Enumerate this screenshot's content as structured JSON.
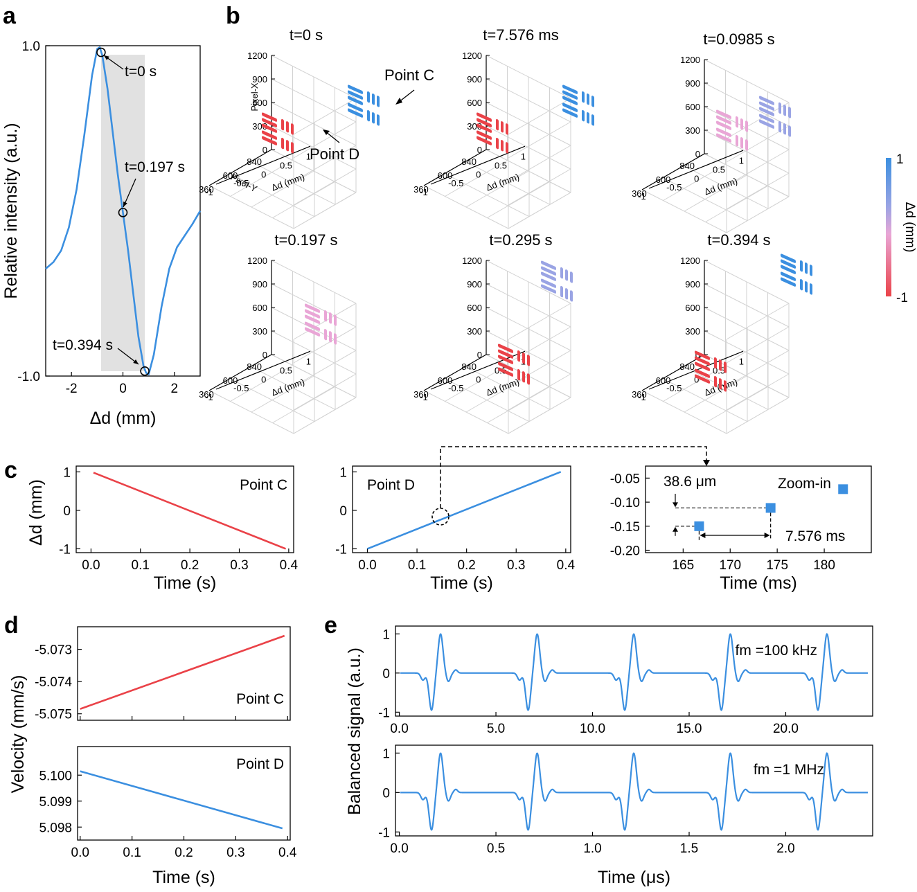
{
  "panel_labels": [
    "a",
    "b",
    "c",
    "d",
    "e"
  ],
  "colors": {
    "blue": "#3b8fe0",
    "red": "#ea4248",
    "pink": "#e9a6d6",
    "lavender": "#9aa4e4",
    "grey_band": "#e1e1e1"
  },
  "chart_data": [
    {
      "id": "a",
      "type": "line",
      "xlabel": "Δd (mm)",
      "ylabel": "Relative intensity (a.u.)",
      "xlim": [
        -3,
        3
      ],
      "ylim": [
        -1.0,
        1.0
      ],
      "xticks": [
        "-2",
        "0",
        "2"
      ],
      "yticks": [
        "1.0",
        "-1.0"
      ],
      "shaded_region": [
        -0.85,
        0.85
      ],
      "series": [
        {
          "x": [
            -3,
            -2.7,
            -2.4,
            -2.1,
            -1.8,
            -1.5,
            -1.2,
            -1.0,
            -0.9,
            -0.8,
            -0.6,
            -0.4,
            -0.2,
            0,
            0.2,
            0.4,
            0.6,
            0.8,
            0.9,
            1.0,
            1.2,
            1.5,
            1.8,
            2.1,
            2.4,
            2.7,
            3
          ],
          "y": [
            -0.35,
            -0.31,
            -0.24,
            -0.1,
            0.13,
            0.46,
            0.82,
            0.98,
            0.99,
            0.94,
            0.74,
            0.48,
            0.22,
            -0.01,
            -0.24,
            -0.5,
            -0.76,
            -0.94,
            -0.98,
            -0.99,
            -0.87,
            -0.58,
            -0.35,
            -0.22,
            -0.15,
            -0.08,
            0.0
          ]
        }
      ],
      "markers": [
        {
          "x": -0.85,
          "y": 0.96,
          "label": "t=0 s"
        },
        {
          "x": 0.0,
          "y": -0.01,
          "label": "t=0.197 s"
        },
        {
          "x": 0.85,
          "y": -0.97,
          "label": "t=0.394 s"
        }
      ]
    },
    {
      "id": "b",
      "type": "scatter",
      "zlabel": "Pixel-X",
      "ylabel": "Pixel-Y",
      "xlabel": "Δd (mm)",
      "zticks": [
        "0",
        "300",
        "600",
        "900",
        "1200"
      ],
      "yticks": [
        "840",
        "600",
        "360"
      ],
      "xticks": [
        "-1",
        "-0.5",
        "0",
        "0.5",
        "1"
      ],
      "colorbar": {
        "label": "Δd (mm)",
        "max": "1",
        "min": "-1"
      },
      "panels": [
        {
          "title": "t=0 s",
          "groups": [
            {
              "dd": -1,
              "color": "red",
              "level": "mid"
            },
            {
              "dd": 1,
              "color": "blue",
              "level": "mid"
            }
          ],
          "annotations": [
            "Point C",
            "Point D"
          ]
        },
        {
          "title": "t=7.576 ms",
          "groups": [
            {
              "dd": -1,
              "color": "red",
              "level": "mid"
            },
            {
              "dd": 1,
              "color": "blue",
              "level": "mid"
            }
          ]
        },
        {
          "title": "t=0.0985 s",
          "groups": [
            {
              "dd": -0.5,
              "color": "pink",
              "level": "mid"
            },
            {
              "dd": 0.5,
              "color": "lavender",
              "level": "mid"
            }
          ]
        },
        {
          "title": "t=0.197 s",
          "groups": [
            {
              "dd": 0,
              "color": "pink",
              "level": "mid"
            }
          ]
        },
        {
          "title": "t=0.295 s",
          "groups": [
            {
              "dd": -0.5,
              "color": "red",
              "level": "low"
            },
            {
              "dd": 0.5,
              "color": "lavender",
              "level": "high"
            }
          ]
        },
        {
          "title": "t=0.394 s",
          "groups": [
            {
              "dd": -1,
              "color": "red",
              "level": "low"
            },
            {
              "dd": 1,
              "color": "blue",
              "level": "high"
            }
          ]
        }
      ]
    },
    {
      "id": "c1",
      "type": "line",
      "xlabel": "Time (s)",
      "ylabel": "Δd (mm)",
      "xlim": [
        -0.03,
        0.41
      ],
      "ylim": [
        -1.1,
        1.15
      ],
      "xticks": [
        "0.0",
        "0.1",
        "0.2",
        "0.3",
        "0.4"
      ],
      "yticks": [
        "1",
        "0",
        "-1"
      ],
      "label": "Point C",
      "series": [
        {
          "x": [
            0.005,
            0.394
          ],
          "y": [
            0.98,
            -1.0
          ]
        }
      ]
    },
    {
      "id": "c2",
      "type": "line",
      "xlabel": "Time (s)",
      "xlim": [
        -0.03,
        0.41
      ],
      "ylim": [
        -1.1,
        1.15
      ],
      "xticks": [
        "0.0",
        "0.1",
        "0.2",
        "0.3",
        "0.4"
      ],
      "yticks": [
        "1",
        "0",
        "-1"
      ],
      "label": "Point D",
      "series": [
        {
          "x": [
            0.0,
            0.39
          ],
          "y": [
            -1.0,
            1.0
          ]
        }
      ]
    },
    {
      "id": "c3",
      "type": "scatter",
      "xlabel": "Time (ms)",
      "xlim": [
        161,
        185
      ],
      "ylim": [
        -0.205,
        -0.025
      ],
      "xticks": [
        "165",
        "170",
        "175",
        "180"
      ],
      "yticks": [
        "-0.05",
        "-0.10",
        "-0.15",
        "-0.20"
      ],
      "label": "Zoom-in",
      "points": [
        {
          "x": 166.7,
          "y": -0.15
        },
        {
          "x": 174.3,
          "y": -0.112
        },
        {
          "x": 182,
          "y": -0.073
        }
      ],
      "annotations": [
        "38.6 μm",
        "7.576 ms"
      ]
    },
    {
      "id": "d1",
      "type": "line",
      "ylabel": "Velocity (mm/s)",
      "xlim": [
        -0.005,
        0.405
      ],
      "ylim": [
        -5.0752,
        -5.0723
      ],
      "yticks": [
        "-5.073",
        "-5.074",
        "-5.075"
      ],
      "label": "Point C",
      "series": [
        {
          "x": [
            0.0,
            0.394
          ],
          "y": [
            -5.07485,
            -5.07258
          ]
        }
      ]
    },
    {
      "id": "d2",
      "type": "line",
      "xlabel": "Time (s)",
      "xlim": [
        -0.005,
        0.405
      ],
      "ylim": [
        5.0975,
        5.1011
      ],
      "xticks": [
        "0.0",
        "0.1",
        "0.2",
        "0.3",
        "0.4"
      ],
      "yticks": [
        "5.100",
        "5.099",
        "5.098"
      ],
      "label": "Point D",
      "series": [
        {
          "x": [
            0.0,
            0.39
          ],
          "y": [
            5.10015,
            5.09795
          ]
        }
      ]
    },
    {
      "id": "e1",
      "type": "line",
      "ylabel": "Balanced signal (a.u.)",
      "xlim": [
        -0.2,
        24.5
      ],
      "ylim": [
        -1.1,
        1.2
      ],
      "xticks": [
        "0.0",
        "5.0",
        "10.0",
        "15.0",
        "20.0"
      ],
      "yticks": [
        "1",
        "0",
        "-1"
      ],
      "label": "fm =100 kHz",
      "pulse_centers": [
        1.9,
        6.9,
        11.9,
        16.9,
        21.9
      ]
    },
    {
      "id": "e2",
      "type": "line",
      "xlabel": "Time (μs)",
      "xlim": [
        -0.02,
        2.45
      ],
      "ylim": [
        -1.1,
        1.2
      ],
      "xticks": [
        "0.0",
        "0.5",
        "1.0",
        "1.5",
        "2.0"
      ],
      "yticks": [
        "1",
        "0",
        "-1"
      ],
      "label": "fm =1 MHz",
      "pulse_centers": [
        0.19,
        0.69,
        1.19,
        1.69,
        2.19
      ]
    }
  ]
}
